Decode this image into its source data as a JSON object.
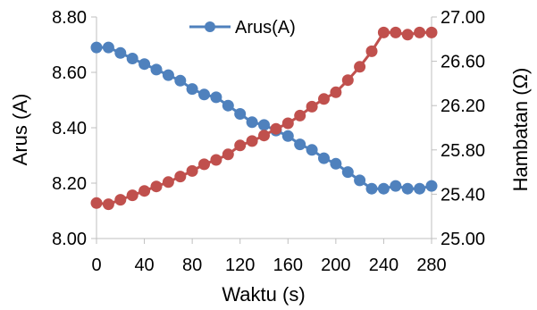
{
  "chart_data": {
    "type": "line",
    "title": "",
    "xlabel": "Waktu (s)",
    "ylabel_left": "Arus (A)",
    "ylabel_right": "Hambatan (Ω)",
    "xlim": [
      0,
      280
    ],
    "ylim_left": [
      8.0,
      8.8
    ],
    "ylim_right": [
      25.0,
      27.0
    ],
    "x_ticks": [
      "0",
      "40",
      "80",
      "120",
      "160",
      "200",
      "240",
      "280"
    ],
    "y_ticks_left": [
      "8.00",
      "8.20",
      "8.40",
      "8.60",
      "8.80"
    ],
    "y_ticks_right": [
      "25.00",
      "25.40",
      "25.80",
      "26.20",
      "26.60",
      "27.00"
    ],
    "legend_position": "top",
    "grid": false,
    "x": [
      0,
      10,
      20,
      30,
      40,
      50,
      60,
      70,
      80,
      90,
      100,
      110,
      120,
      130,
      140,
      150,
      160,
      170,
      180,
      190,
      200,
      210,
      220,
      230,
      240,
      250,
      260,
      270,
      280
    ],
    "series": [
      {
        "name": "Arus(A)",
        "axis": "left",
        "color": "#4F81BD",
        "values": [
          8.69,
          8.69,
          8.67,
          8.65,
          8.63,
          8.61,
          8.59,
          8.57,
          8.54,
          8.52,
          8.51,
          8.48,
          8.45,
          8.42,
          8.41,
          8.39,
          8.37,
          8.34,
          8.32,
          8.29,
          8.27,
          8.24,
          8.21,
          8.18,
          8.18,
          8.19,
          8.18,
          8.18,
          8.19
        ]
      },
      {
        "name": "",
        "axis": "right",
        "color": "#C0504D",
        "values": [
          25.32,
          25.31,
          25.35,
          25.39,
          25.43,
          25.47,
          25.51,
          25.56,
          25.61,
          25.67,
          25.71,
          25.76,
          25.84,
          25.88,
          25.93,
          25.99,
          26.04,
          26.11,
          26.19,
          26.26,
          26.32,
          26.43,
          26.55,
          26.69,
          26.86,
          26.86,
          26.84,
          26.86,
          26.86
        ]
      }
    ]
  }
}
